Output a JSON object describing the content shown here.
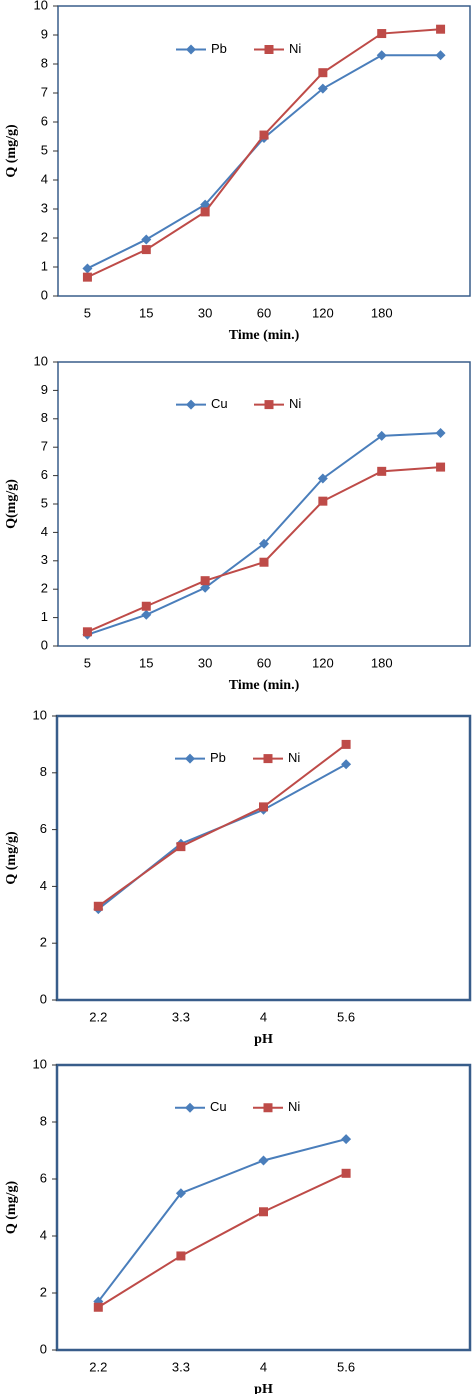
{
  "chart_data": [
    {
      "type": "line",
      "x_label": "Time (min.)",
      "y_label": "Q (mg/g)",
      "categories": [
        "5",
        "15",
        "30",
        "60",
        "120",
        "180",
        null
      ],
      "series": [
        {
          "name": "Pb",
          "color": "#4a7ebb",
          "marker": "diamond",
          "values": [
            0.95,
            1.95,
            3.15,
            5.45,
            7.15,
            8.3,
            8.3
          ]
        },
        {
          "name": "Ni",
          "color": "#be4b48",
          "marker": "square",
          "values": [
            0.65,
            1.6,
            2.9,
            5.55,
            7.7,
            9.05,
            9.2
          ]
        }
      ],
      "ylim": [
        0,
        10
      ],
      "yticks": [
        0,
        1,
        2,
        3,
        4,
        5,
        6,
        7,
        8,
        9,
        10
      ],
      "grid": false,
      "legend": "top"
    },
    {
      "type": "line",
      "x_label": "Time (min.)",
      "y_label": "Q(mg/g)",
      "categories": [
        "5",
        "15",
        "30",
        "60",
        "120",
        "180",
        null
      ],
      "series": [
        {
          "name": "Cu",
          "color": "#4a7ebb",
          "marker": "diamond",
          "values": [
            0.4,
            1.1,
            2.05,
            3.6,
            5.9,
            7.4,
            7.5
          ]
        },
        {
          "name": "Ni",
          "color": "#be4b48",
          "marker": "square",
          "values": [
            0.5,
            1.4,
            2.3,
            2.95,
            5.1,
            6.15,
            6.3
          ]
        }
      ],
      "ylim": [
        0,
        10
      ],
      "yticks": [
        0,
        1,
        2,
        3,
        4,
        5,
        6,
        7,
        8,
        9,
        10
      ],
      "grid": false,
      "legend": "top"
    },
    {
      "type": "line",
      "x_label": "pH",
      "y_label": "Q (mg/g)",
      "categories": [
        "2.2",
        "3.3",
        "4",
        "5.6",
        null
      ],
      "series": [
        {
          "name": "Pb",
          "color": "#4a7ebb",
          "marker": "diamond",
          "values": [
            3.2,
            5.5,
            6.7,
            8.3,
            null
          ]
        },
        {
          "name": "Ni",
          "color": "#be4b48",
          "marker": "square",
          "values": [
            3.3,
            5.4,
            6.8,
            9.0,
            null
          ]
        }
      ],
      "ylim": [
        0,
        10
      ],
      "yticks": [
        0,
        2,
        4,
        6,
        8,
        10
      ],
      "grid": false,
      "legend": "top"
    },
    {
      "type": "line",
      "x_label": "pH",
      "y_label": "Q (mg/g)",
      "categories": [
        "2.2",
        "3.3",
        "4",
        "5.6",
        null
      ],
      "series": [
        {
          "name": "Cu",
          "color": "#4a7ebb",
          "marker": "diamond",
          "values": [
            1.7,
            5.5,
            6.65,
            7.4,
            null
          ]
        },
        {
          "name": "Ni",
          "color": "#be4b48",
          "marker": "square",
          "values": [
            1.5,
            3.3,
            4.85,
            6.2,
            null
          ]
        }
      ],
      "ylim": [
        0,
        10
      ],
      "yticks": [
        0,
        2,
        4,
        6,
        8,
        10
      ],
      "grid": false,
      "legend": "top"
    }
  ]
}
